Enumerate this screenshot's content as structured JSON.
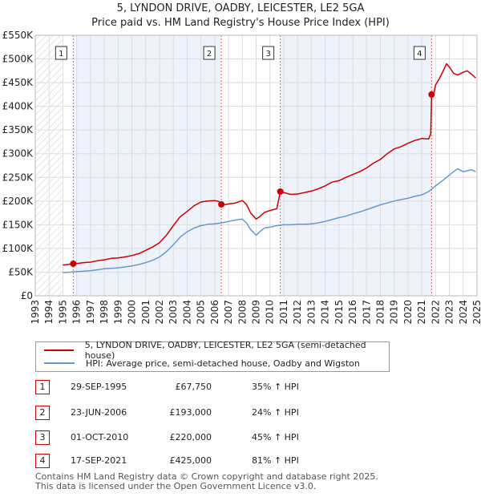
{
  "title_line1": "5, LYNDON DRIVE, OADBY, LEICESTER, LE2 5GA",
  "title_line2": "Price paid vs. HM Land Registry's House Price Index (HPI)",
  "legend": {
    "property": "5, LYNDON DRIVE, OADBY, LEICESTER, LE2 5GA (semi-detached house)",
    "hpi": "HPI: Average price, semi-detached house, Oadby and Wigston"
  },
  "transactions": [
    {
      "n": "1",
      "date": "29-SEP-1995",
      "price": "£67,750",
      "hpi": "35% ↑ HPI"
    },
    {
      "n": "2",
      "date": "23-JUN-2006",
      "price": "£193,000",
      "hpi": "24% ↑ HPI"
    },
    {
      "n": "3",
      "date": "01-OCT-2010",
      "price": "£220,000",
      "hpi": "45% ↑ HPI"
    },
    {
      "n": "4",
      "date": "17-SEP-2021",
      "price": "£425,000",
      "hpi": "81% ↑ HPI"
    }
  ],
  "footer_line1": "Contains HM Land Registry data © Crown copyright and database right 2025.",
  "footer_line2": "This data is licensed under the Open Government Licence v3.0.",
  "colors": {
    "property": "#cc0000",
    "hpi": "#6699cc",
    "shade": "#eef2fb",
    "grid": "#dddddd"
  },
  "chart_data": {
    "type": "line",
    "xlabel": "",
    "ylabel": "",
    "xlim": [
      1993,
      2025
    ],
    "ylim": [
      0,
      550000
    ],
    "y_ticks": [
      {
        "v": 0,
        "label": "£0"
      },
      {
        "v": 50000,
        "label": "£50K"
      },
      {
        "v": 100000,
        "label": "£100K"
      },
      {
        "v": 150000,
        "label": "£150K"
      },
      {
        "v": 200000,
        "label": "£200K"
      },
      {
        "v": 250000,
        "label": "£250K"
      },
      {
        "v": 300000,
        "label": "£300K"
      },
      {
        "v": 350000,
        "label": "£350K"
      },
      {
        "v": 400000,
        "label": "£400K"
      },
      {
        "v": 450000,
        "label": "£450K"
      },
      {
        "v": 500000,
        "label": "£500K"
      },
      {
        "v": 550000,
        "label": "£550K"
      }
    ],
    "x_ticks": [
      "1993",
      "1994",
      "1995",
      "1996",
      "1997",
      "1998",
      "1999",
      "2000",
      "2001",
      "2002",
      "2003",
      "2004",
      "2005",
      "2006",
      "2007",
      "2008",
      "2009",
      "2010",
      "2011",
      "2012",
      "2013",
      "2014",
      "2015",
      "2016",
      "2017",
      "2018",
      "2019",
      "2020",
      "2021",
      "2022",
      "2023",
      "2024",
      "2025"
    ],
    "hatched_until": 1995.0,
    "sales": [
      {
        "label": "1",
        "x": 1995.75,
        "y": 67750
      },
      {
        "label": "2",
        "x": 2006.48,
        "y": 193000
      },
      {
        "label": "3",
        "x": 2010.75,
        "y": 220000
      },
      {
        "label": "4",
        "x": 2021.71,
        "y": 425000
      }
    ],
    "series": [
      {
        "name": "5, LYNDON DRIVE, OADBY, LEICESTER, LE2 5GA (semi-detached house)",
        "color": "#cc0000",
        "x": [
          1995.0,
          1995.75,
          1996.0,
          1996.5,
          1997.0,
          1997.5,
          1998.0,
          1998.5,
          1999.0,
          1999.5,
          2000.0,
          2000.5,
          2001.0,
          2001.5,
          2002.0,
          2002.5,
          2003.0,
          2003.5,
          2004.0,
          2004.5,
          2005.0,
          2005.5,
          2006.0,
          2006.3,
          2006.48,
          2006.7,
          2007.0,
          2007.5,
          2008.0,
          2008.3,
          2008.6,
          2009.0,
          2009.3,
          2009.6,
          2010.0,
          2010.5,
          2010.75,
          2011.0,
          2011.5,
          2012.0,
          2012.5,
          2013.0,
          2013.5,
          2014.0,
          2014.5,
          2015.0,
          2015.5,
          2016.0,
          2016.5,
          2017.0,
          2017.5,
          2018.0,
          2018.5,
          2019.0,
          2019.5,
          2020.0,
          2020.5,
          2021.0,
          2021.5,
          2021.65,
          2021.71,
          2021.9,
          2022.0,
          2022.3,
          2022.6,
          2022.8,
          2023.0,
          2023.3,
          2023.6,
          2024.0,
          2024.3,
          2024.6,
          2024.9
        ],
        "values": [
          65000,
          67750,
          68000,
          70000,
          71000,
          74000,
          76000,
          79000,
          80000,
          82000,
          85000,
          89000,
          96000,
          103000,
          112000,
          128000,
          148000,
          167000,
          178000,
          190000,
          198000,
          200000,
          201000,
          199000,
          193000,
          192000,
          194000,
          196000,
          201000,
          193000,
          175000,
          162000,
          168000,
          176000,
          180000,
          184000,
          220000,
          218000,
          214000,
          215000,
          218000,
          221000,
          226000,
          232000,
          240000,
          243000,
          250000,
          256000,
          262000,
          270000,
          280000,
          288000,
          300000,
          310000,
          315000,
          322000,
          328000,
          332000,
          331000,
          342000,
          425000,
          430000,
          445000,
          460000,
          478000,
          490000,
          483000,
          470000,
          466000,
          472000,
          475000,
          468000,
          460000
        ]
      },
      {
        "name": "HPI: Average price, semi-detached house, Oadby and Wigston",
        "color": "#6699cc",
        "x": [
          1995.0,
          1995.5,
          1996.0,
          1996.5,
          1997.0,
          1997.5,
          1998.0,
          1998.5,
          1999.0,
          1999.5,
          2000.0,
          2000.5,
          2001.0,
          2001.5,
          2002.0,
          2002.5,
          2003.0,
          2003.5,
          2004.0,
          2004.5,
          2005.0,
          2005.5,
          2006.0,
          2006.5,
          2007.0,
          2007.5,
          2008.0,
          2008.3,
          2008.6,
          2009.0,
          2009.3,
          2009.6,
          2010.0,
          2010.5,
          2011.0,
          2011.5,
          2012.0,
          2012.5,
          2013.0,
          2013.5,
          2014.0,
          2014.5,
          2015.0,
          2015.5,
          2016.0,
          2016.5,
          2017.0,
          2017.5,
          2018.0,
          2018.5,
          2019.0,
          2019.5,
          2020.0,
          2020.5,
          2021.0,
          2021.5,
          2022.0,
          2022.5,
          2023.0,
          2023.3,
          2023.6,
          2024.0,
          2024.3,
          2024.6,
          2024.9
        ],
        "values": [
          49000,
          50000,
          51000,
          52000,
          53000,
          55000,
          57000,
          58000,
          59000,
          61000,
          63000,
          66000,
          70000,
          75000,
          82000,
          93000,
          108000,
          124000,
          135000,
          143000,
          148000,
          151000,
          152000,
          154000,
          157000,
          160000,
          162000,
          154000,
          140000,
          128000,
          136000,
          143000,
          145000,
          148000,
          150000,
          150000,
          151000,
          151000,
          152000,
          154000,
          157000,
          161000,
          165000,
          168000,
          173000,
          177000,
          182000,
          187000,
          192000,
          196000,
          200000,
          203000,
          206000,
          210000,
          213000,
          220000,
          232000,
          243000,
          255000,
          262000,
          268000,
          262000,
          264000,
          266000,
          262000
        ]
      }
    ]
  }
}
